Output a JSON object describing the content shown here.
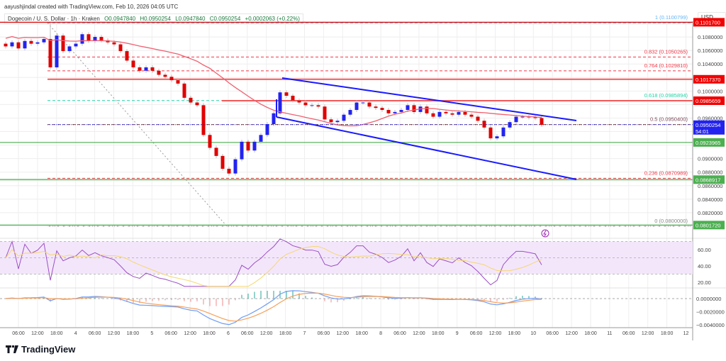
{
  "header": {
    "credit": "aayushjindal created with TradingView.com, Feb 10, 2026 04:05 UTC",
    "symbol": "Dogecoin / U. S. Dollar · 1h · Kraken",
    "open": "O0.0947840",
    "high": "H0.0950254",
    "low": "L0.0947840",
    "close": "C0.0950254",
    "change": "+0.0002063 (+0.22%)"
  },
  "axis": {
    "currency": "USD",
    "price_ticks": [
      "0.1080000",
      "0.1060000",
      "0.1040000",
      "0.1000000",
      "0.0960000",
      "0.0900000",
      "0.0880000",
      "0.0860000",
      "0.0840000",
      "0.0820000"
    ],
    "rsi_ticks": [
      "60.00",
      "40.00",
      "20.00"
    ],
    "macd_ticks": [
      "0.0000000",
      "−0.0020000",
      "−0.0040000"
    ],
    "time_labels": [
      "06:00",
      "12:00",
      "18:00",
      "4",
      "06:00",
      "12:00",
      "18:00",
      "5",
      "06:00",
      "12:00",
      "18:00",
      "6",
      "06:00",
      "12:00",
      "18:00",
      "7",
      "06:00",
      "12:00",
      "18:00",
      "8",
      "06:00",
      "12:00",
      "18:00",
      "9",
      "06:00",
      "12:00",
      "18:00",
      "10",
      "06:00",
      "12:00",
      "18:00",
      "11",
      "06:00",
      "12:00",
      "18:00",
      "12"
    ]
  },
  "current_price": {
    "value": "0.0950254",
    "countdown": "54:01",
    "color": "#2323f0"
  },
  "price_labels": [
    {
      "value": "0.1101700",
      "price": 0.11017,
      "color": "#f00000"
    },
    {
      "value": "0.1017370",
      "price": 0.101737,
      "color": "#f00000"
    },
    {
      "value": "0.0985659",
      "price": 0.0985659,
      "color": "#f00000"
    },
    {
      "value": "0.0923965",
      "price": 0.0923965,
      "color": "#4caf50"
    },
    {
      "value": "0.0868917",
      "price": 0.0868917,
      "color": "#4caf50"
    },
    {
      "value": "0.0801720",
      "price": 0.080172,
      "color": "#4caf50"
    }
  ],
  "fib_levels": [
    {
      "label": "1 (0.1100799)",
      "price": 0.1100799,
      "color": "#64b5f6"
    },
    {
      "label": "0.832 (0.1050265)",
      "price": 0.1050265,
      "color": "#f23645"
    },
    {
      "label": "0.764 (0.1029810)",
      "price": 0.102981,
      "color": "#f23645"
    },
    {
      "label": "0.618 (0.0985894)",
      "price": 0.0985894,
      "color": "#22d3a5"
    },
    {
      "label": "0.5 (0.0950400)",
      "price": 0.09504,
      "color": "#7b4a5a"
    },
    {
      "label": "0.236 (0.0870989)",
      "price": 0.0870989,
      "color": "#f23645"
    },
    {
      "label": "0 (0.0800000)",
      "price": 0.08,
      "color": "#888888"
    }
  ],
  "chart_data": {
    "type": "candlestick",
    "interval": "2h sampled closes",
    "start": "Feb 3 02:00",
    "closes": [
      0.1066,
      0.1072,
      0.1063,
      0.1074,
      0.107,
      0.1072,
      0.1077,
      0.1035,
      0.1082,
      0.1059,
      0.1066,
      0.107,
      0.1084,
      0.1074,
      0.108,
      0.1075,
      0.1072,
      0.1069,
      0.1059,
      0.1045,
      0.1035,
      0.103,
      0.1035,
      0.103,
      0.1024,
      0.1021,
      0.1016,
      0.1011,
      0.099,
      0.0983,
      0.0979,
      0.0935,
      0.0916,
      0.0904,
      0.0885,
      0.0878,
      0.0899,
      0.0925,
      0.0912,
      0.0925,
      0.0935,
      0.0951,
      0.0967,
      0.0998,
      0.0993,
      0.0986,
      0.0983,
      0.0979,
      0.0979,
      0.0977,
      0.0958,
      0.0954,
      0.0956,
      0.0965,
      0.0972,
      0.0983,
      0.0983,
      0.0977,
      0.0975,
      0.0972,
      0.0967,
      0.0969,
      0.0972,
      0.0979,
      0.0969,
      0.0977,
      0.0967,
      0.0962,
      0.0969,
      0.0967,
      0.0965,
      0.0969,
      0.0965,
      0.0962,
      0.0956,
      0.0946,
      0.093,
      0.0933,
      0.0946,
      0.0954,
      0.0962,
      0.0962,
      0.0961,
      0.096,
      0.095
    ],
    "ylim": [
      0.079,
      0.111
    ],
    "up_color": "#2323f0",
    "down_color": "#e00000",
    "ma_color": "#f06070",
    "channel_color": "#1a1aff",
    "rsi_ylim": [
      10,
      80
    ],
    "rsi_color": "#9c4fc4",
    "rsi_ma_color": "#f5d76e",
    "macd_color": "#6f9cf5",
    "signal_color": "#f5a05a"
  }
}
